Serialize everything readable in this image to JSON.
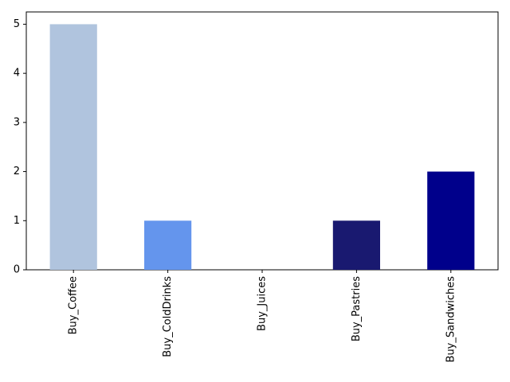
{
  "chart_data": {
    "type": "bar",
    "categories": [
      "Buy_Coffee",
      "Buy_ColdDrinks",
      "Buy_Juices",
      "Buy_Pastries",
      "Buy_Sandwiches"
    ],
    "values": [
      5,
      1,
      0,
      1,
      2
    ],
    "colors": [
      "#b0c4de",
      "#6495ed",
      "#4169e1",
      "#191970",
      "#00008b"
    ],
    "ylim": [
      0,
      5.25
    ],
    "yticks": [
      0,
      1,
      2,
      3,
      4,
      5
    ],
    "grid": false
  }
}
